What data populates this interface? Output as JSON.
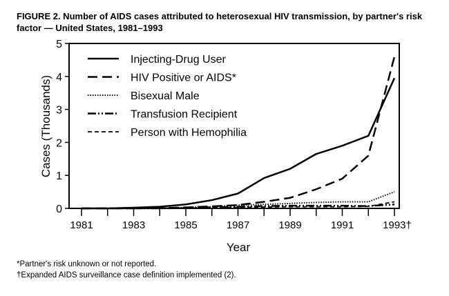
{
  "title": "FIGURE 2. Number of AIDS cases attributed to heterosexual HIV transmission, by partner's risk factor — United States, 1981–1993",
  "footnotes": [
    "*Partner's risk unknown or not reported.",
    "†Expanded AIDS surveillance case definition implemented (2)."
  ],
  "chart_data": {
    "type": "line",
    "title": "FIGURE 2. Number of AIDS cases attributed to heterosexual HIV transmission, by partner's risk factor — United States, 1981–1993",
    "xlabel": "Year",
    "ylabel": "Cases (Thousands)",
    "x": [
      1981,
      1982,
      1983,
      1984,
      1985,
      1986,
      1987,
      1988,
      1989,
      1990,
      1991,
      1992,
      1993
    ],
    "xticklabels": [
      "1981",
      "1983",
      "1985",
      "1987",
      "1989",
      "1991",
      "1993†"
    ],
    "xticklabel_years": [
      1981,
      1983,
      1985,
      1987,
      1989,
      1991,
      1993
    ],
    "yticks": [
      0,
      1,
      2,
      3,
      4,
      5
    ],
    "ylim": [
      0,
      5
    ],
    "grid": false,
    "legend": "top-left",
    "series": [
      {
        "name": "Injecting-Drug User",
        "dash": "",
        "width": 2.5,
        "values": [
          0,
          0,
          0.02,
          0.05,
          0.12,
          0.25,
          0.45,
          0.92,
          1.2,
          1.65,
          1.9,
          2.2,
          3.95
        ]
      },
      {
        "name": "HIV Positive or AIDS*",
        "dash": "14 7",
        "width": 2.5,
        "values": [
          0,
          0,
          0,
          0.01,
          0.03,
          0.06,
          0.1,
          0.2,
          0.32,
          0.58,
          0.9,
          1.6,
          4.6
        ]
      },
      {
        "name": "Bisexual Male",
        "dash": "1.5 2",
        "width": 2,
        "values": [
          0,
          0,
          0,
          0.01,
          0.03,
          0.05,
          0.1,
          0.12,
          0.15,
          0.18,
          0.2,
          0.2,
          0.5
        ]
      },
      {
        "name": "Transfusion Recipient",
        "dash": "12 3 2 3 2 3",
        "width": 2.5,
        "values": [
          0,
          0,
          0,
          0,
          0.01,
          0.03,
          0.05,
          0.07,
          0.08,
          0.08,
          0.08,
          0.07,
          0.12
        ]
      },
      {
        "name": "Person with Hemophilia",
        "dash": "6 4",
        "width": 1.8,
        "values": [
          0,
          0,
          0,
          0,
          0.01,
          0.02,
          0.03,
          0.04,
          0.05,
          0.05,
          0.05,
          0.06,
          0.2
        ]
      }
    ]
  }
}
